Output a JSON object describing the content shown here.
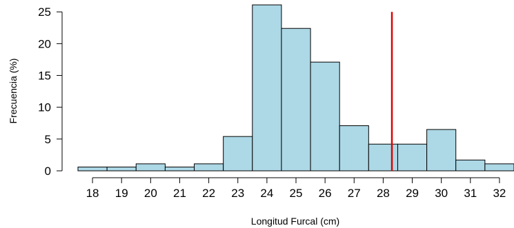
{
  "chart_data": {
    "type": "bar",
    "title": "",
    "xlabel": "Longitud Furcal (cm)",
    "ylabel": "Frecuencia (%)",
    "x_tick_labels": [
      "18",
      "19",
      "20",
      "21",
      "22",
      "23",
      "24",
      "25",
      "26",
      "27",
      "28",
      "29",
      "30",
      "31",
      "32"
    ],
    "y_tick_labels": [
      "0",
      "5",
      "10",
      "15",
      "20",
      "25"
    ],
    "xlim": [
      17.5,
      32.5
    ],
    "ylim": [
      0,
      26
    ],
    "bins": [
      {
        "from": 17.5,
        "to": 18.5,
        "value": 0.6
      },
      {
        "from": 18.5,
        "to": 19.5,
        "value": 0.6
      },
      {
        "from": 19.5,
        "to": 20.5,
        "value": 1.1
      },
      {
        "from": 20.5,
        "to": 21.5,
        "value": 0.6
      },
      {
        "from": 21.5,
        "to": 22.5,
        "value": 1.1
      },
      {
        "from": 22.5,
        "to": 23.5,
        "value": 5.4
      },
      {
        "from": 23.5,
        "to": 24.5,
        "value": 26.1
      },
      {
        "from": 24.5,
        "to": 25.5,
        "value": 22.4
      },
      {
        "from": 25.5,
        "to": 26.5,
        "value": 17.1
      },
      {
        "from": 26.5,
        "to": 27.5,
        "value": 7.1
      },
      {
        "from": 27.5,
        "to": 28.5,
        "value": 4.2
      },
      {
        "from": 28.5,
        "to": 29.5,
        "value": 4.2
      },
      {
        "from": 29.5,
        "to": 30.5,
        "value": 6.5
      },
      {
        "from": 30.5,
        "to": 31.5,
        "value": 1.7
      },
      {
        "from": 31.5,
        "to": 32.5,
        "value": 1.1
      }
    ],
    "reference_line": {
      "x": 28.3,
      "y_range": [
        0,
        25
      ],
      "color": "#e00000"
    },
    "bar_fill": "#add8e6",
    "bar_stroke": "#000000",
    "grid": false
  }
}
